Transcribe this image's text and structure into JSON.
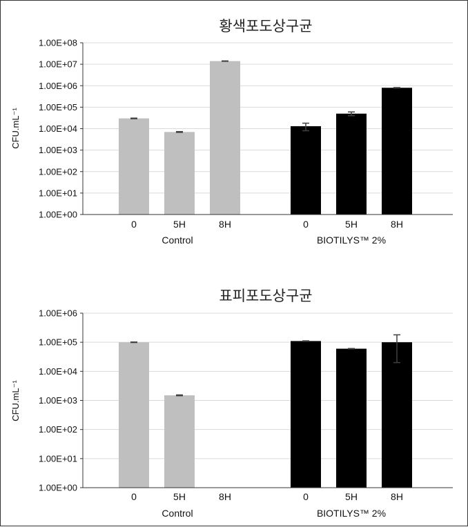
{
  "chart_data": [
    {
      "type": "bar",
      "title": "황색포도상구균",
      "ylabel": "CFU.mL⁻¹",
      "yscale": "log",
      "ylim": [
        1,
        100000000
      ],
      "yticks": [
        "1.00E+00",
        "1.00E+01",
        "1.00E+02",
        "1.00E+03",
        "1.00E+04",
        "1.00E+05",
        "1.00E+06",
        "1.00E+07",
        "1.00E+08"
      ],
      "grid": true,
      "groups": [
        {
          "name": "Control",
          "color": "#bfbfbf",
          "categories": [
            "0",
            "5H",
            "8H"
          ],
          "values": [
            30000,
            7000,
            14000000
          ],
          "errors": [
            1000,
            300,
            300000
          ]
        },
        {
          "name": "BIOTILYS™ 2%",
          "color": "#000000",
          "categories": [
            "0",
            "5H",
            "8H"
          ],
          "values": [
            13000,
            50000,
            800000
          ],
          "errors": [
            5000,
            10000,
            20000
          ]
        }
      ]
    },
    {
      "type": "bar",
      "title": "표피포도상구균",
      "ylabel": "CFU.mL⁻¹",
      "yscale": "log",
      "ylim": [
        1,
        1000000
      ],
      "yticks": [
        "1.00E+00",
        "1.00E+01",
        "1.00E+02",
        "1.00E+03",
        "1.00E+04",
        "1.00E+05",
        "1.00E+06"
      ],
      "grid": true,
      "groups": [
        {
          "name": "Control",
          "color": "#bfbfbf",
          "categories": [
            "0",
            "5H",
            "8H"
          ],
          "values": [
            100000,
            1500,
            null
          ],
          "errors": [
            2000,
            50,
            null
          ]
        },
        {
          "name": "BIOTILYS™ 2%",
          "color": "#000000",
          "categories": [
            "0",
            "5H",
            "8H"
          ],
          "values": [
            110000,
            60000,
            100000
          ],
          "errors": [
            2000,
            1000,
            80000
          ]
        }
      ]
    }
  ]
}
